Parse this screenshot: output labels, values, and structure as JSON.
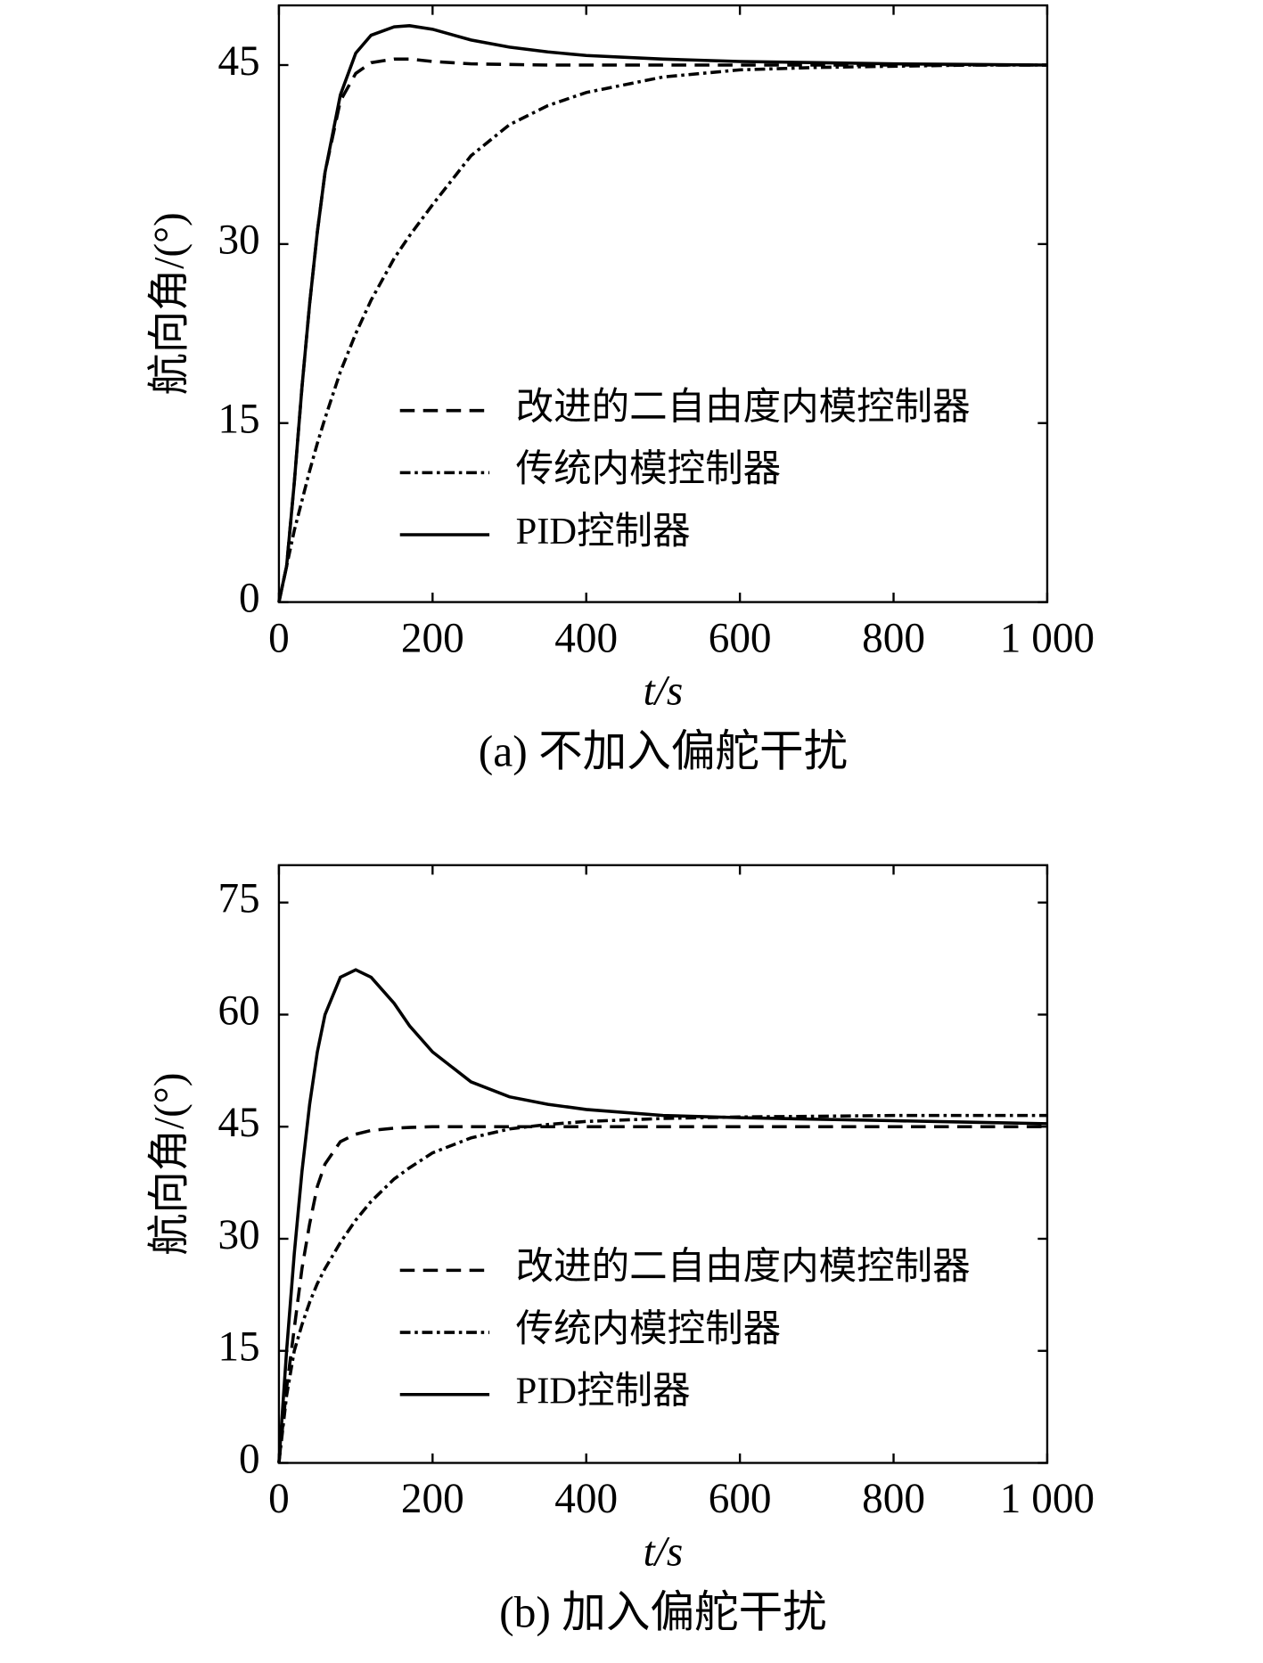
{
  "chart_data": [
    {
      "type": "line",
      "caption": "(a) 不加入偏舵干扰",
      "x_label": "t/s",
      "y_label": "航向角/(°)",
      "xlim": [
        0,
        1000
      ],
      "ylim": [
        0,
        50
      ],
      "xticks": [
        0,
        200,
        400,
        600,
        800,
        {
          "value": 1000,
          "label": "1 000"
        }
      ],
      "yticks": [
        0,
        15,
        30,
        45
      ],
      "x": [
        0,
        10,
        20,
        30,
        40,
        50,
        60,
        80,
        100,
        120,
        150,
        170,
        200,
        250,
        300,
        350,
        400,
        500,
        600,
        700,
        800,
        900,
        1000
      ],
      "series": [
        {
          "name": "改进的二自由度内模控制器",
          "color": "#000000",
          "linestyle": "dashed",
          "values": [
            0,
            3,
            10,
            18,
            25,
            31,
            36,
            42,
            44.3,
            45.2,
            45.5,
            45.5,
            45.3,
            45.1,
            45.05,
            45,
            45,
            45,
            45,
            45,
            45,
            45,
            45
          ]
        },
        {
          "name": "传统内模控制器",
          "color": "#000000",
          "linestyle": "dashdot",
          "values": [
            0,
            3,
            6,
            8.5,
            11,
            13.3,
            15.4,
            19.3,
            22.5,
            25.3,
            28.8,
            30.7,
            33.3,
            37.4,
            40,
            41.6,
            42.7,
            44,
            44.6,
            44.8,
            44.9,
            45,
            45
          ]
        },
        {
          "name": "PID控制器",
          "color": "#000000",
          "linestyle": "solid",
          "values": [
            0,
            3,
            10,
            18,
            25,
            31,
            36,
            42.5,
            46,
            47.5,
            48.2,
            48.3,
            48,
            47.1,
            46.5,
            46.1,
            45.8,
            45.5,
            45.3,
            45.2,
            45.1,
            45.05,
            45
          ]
        }
      ]
    },
    {
      "type": "line",
      "caption": "(b) 加入偏舵干扰",
      "x_label": "t/s",
      "y_label": "航向角/(°)",
      "xlim": [
        0,
        1000
      ],
      "ylim": [
        0,
        80
      ],
      "xticks": [
        0,
        200,
        400,
        600,
        800,
        {
          "value": 1000,
          "label": "1 000"
        }
      ],
      "yticks": [
        0,
        15,
        30,
        45,
        60,
        75
      ],
      "x": [
        0,
        10,
        20,
        30,
        40,
        50,
        60,
        80,
        100,
        120,
        150,
        170,
        200,
        250,
        300,
        350,
        400,
        500,
        600,
        700,
        800,
        900,
        1000
      ],
      "series": [
        {
          "name": "改进的二自由度内模控制器",
          "color": "#000000",
          "linestyle": "dashed",
          "values": [
            0,
            10,
            18,
            26,
            32,
            37,
            40,
            43,
            44,
            44.5,
            44.8,
            44.9,
            45,
            45,
            45,
            45,
            45,
            45,
            45,
            45,
            45,
            45,
            45
          ]
        },
        {
          "name": "传统内模控制器",
          "color": "#000000",
          "linestyle": "dashdot",
          "values": [
            0,
            9,
            15,
            18.5,
            21.5,
            24,
            26,
            29.5,
            32.5,
            35,
            38,
            39.5,
            41.5,
            43.5,
            44.7,
            45.3,
            45.7,
            46.1,
            46.3,
            46.4,
            46.5,
            46.5,
            46.5
          ]
        },
        {
          "name": "PID控制器",
          "color": "#000000",
          "linestyle": "solid",
          "values": [
            0,
            15,
            28,
            39,
            48,
            55,
            60,
            65,
            66,
            65,
            61.5,
            58.5,
            55,
            51,
            49,
            48,
            47.3,
            46.5,
            46.2,
            46,
            45.8,
            45.6,
            45.4
          ]
        }
      ]
    }
  ]
}
